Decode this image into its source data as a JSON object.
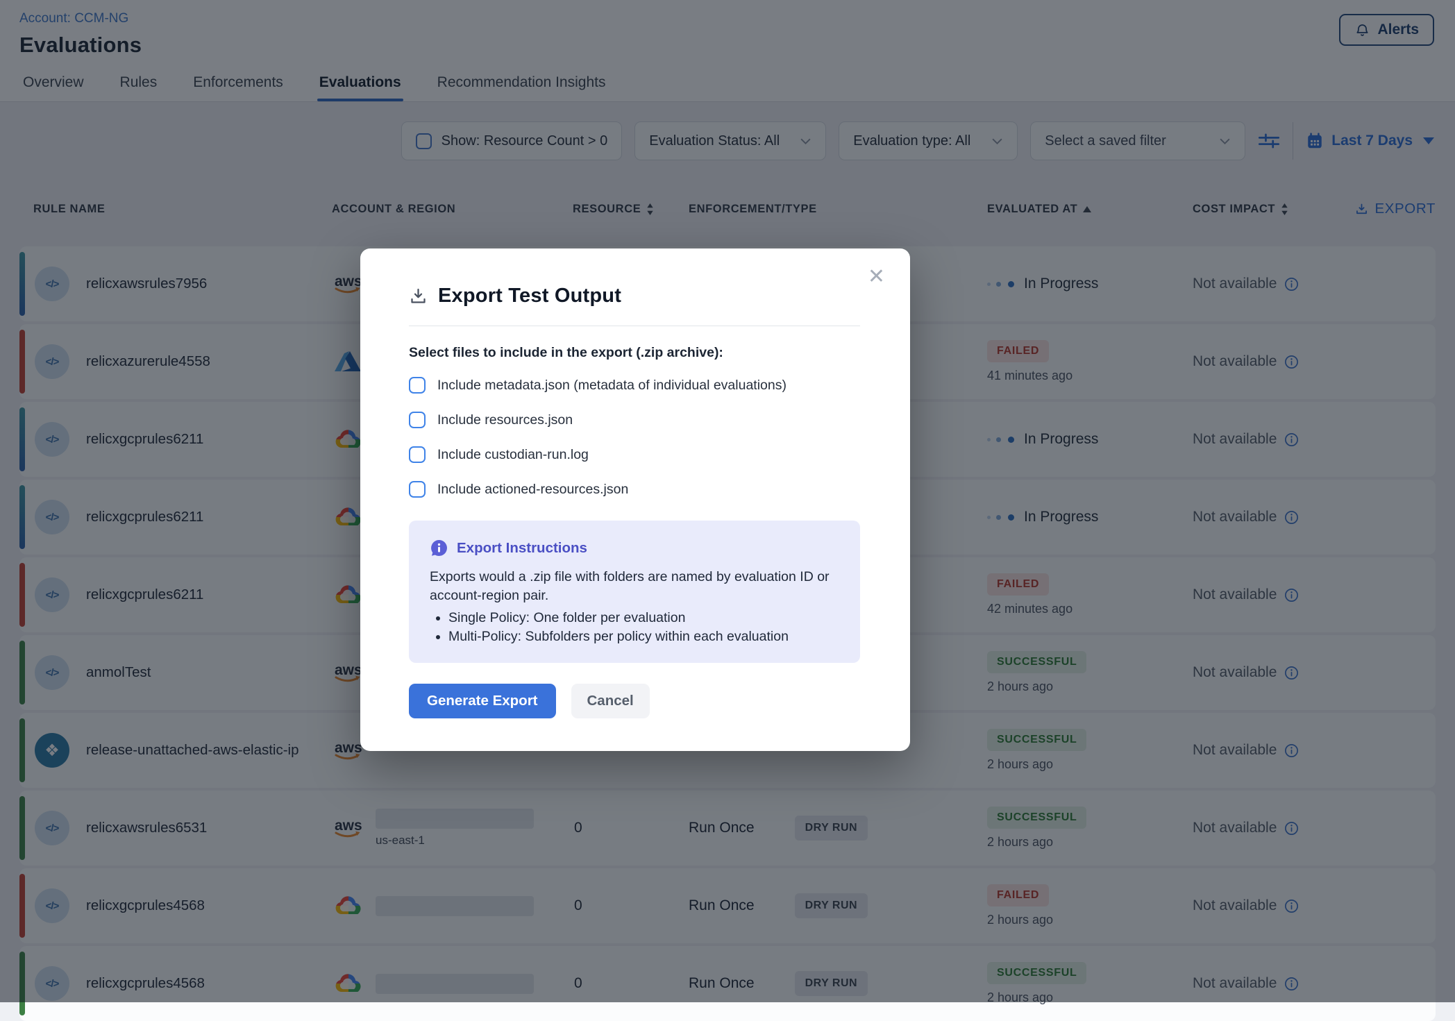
{
  "colors": {
    "accent_blue": "#2b6cd4",
    "link_blue": "#3f78c8",
    "failed_red": "#b3362a",
    "success_green": "#2c7a33",
    "inprogress_blue": "#2d6fc0",
    "instructions_purple": "#4a4fc4",
    "generate_button_blue": "#3a72da"
  },
  "header": {
    "account_label": "Account: CCM-NG",
    "title": "Evaluations",
    "alerts_label": "Alerts"
  },
  "tabs": [
    {
      "label": "Overview",
      "active": false
    },
    {
      "label": "Rules",
      "active": false
    },
    {
      "label": "Enforcements",
      "active": false
    },
    {
      "label": "Evaluations",
      "active": true
    },
    {
      "label": "Recommendation Insights",
      "active": false
    }
  ],
  "filters": {
    "show_label": "Show: Resource Count > 0",
    "status_dropdown": "Evaluation Status: All",
    "type_dropdown": "Evaluation type: All",
    "saved_filter_placeholder": "Select a saved filter",
    "date_range": "Last 7 Days"
  },
  "table": {
    "columns": [
      "RULE NAME",
      "ACCOUNT & REGION",
      "RESOURCE",
      "ENFORCEMENT/TYPE",
      "EVALUATED AT",
      "COST IMPACT"
    ],
    "export_label": "Export",
    "cost_not_available": "Not available",
    "rows": [
      {
        "name": "relicxawsrules7956",
        "provider": "aws",
        "icon": "policy",
        "status_kind": "inprogress",
        "status": "In Progress",
        "time": "",
        "resource": "",
        "enforcement": "",
        "run_type": "",
        "region": "",
        "account_redacted": false
      },
      {
        "name": "relicxazurerule4558",
        "provider": "azure",
        "icon": "policy",
        "status_kind": "failed",
        "status": "FAILED",
        "time": "41 minutes ago",
        "resource": "",
        "enforcement": "",
        "run_type": "",
        "region": "",
        "account_redacted": false
      },
      {
        "name": "relicxgcprules6211",
        "provider": "gcp",
        "icon": "policy",
        "status_kind": "inprogress",
        "status": "In Progress",
        "time": "",
        "resource": "",
        "enforcement": "",
        "run_type": "",
        "region": "",
        "account_redacted": false
      },
      {
        "name": "relicxgcprules6211",
        "provider": "gcp",
        "icon": "policy",
        "status_kind": "inprogress",
        "status": "In Progress",
        "time": "",
        "resource": "",
        "enforcement": "",
        "run_type": "",
        "region": "",
        "account_redacted": false
      },
      {
        "name": "relicxgcprules6211",
        "provider": "gcp",
        "icon": "policy",
        "status_kind": "failed",
        "status": "FAILED",
        "time": "42 minutes ago",
        "resource": "",
        "enforcement": "",
        "run_type": "",
        "region": "",
        "account_redacted": false
      },
      {
        "name": "anmolTest",
        "provider": "aws",
        "icon": "policy",
        "status_kind": "success",
        "status": "SUCCESSFUL",
        "time": "2 hours ago",
        "resource": "",
        "enforcement": "",
        "run_type": "",
        "region": "",
        "account_redacted": false
      },
      {
        "name": "release-unattached-aws-elastic-ip",
        "provider": "aws",
        "icon": "action",
        "status_kind": "success",
        "status": "SUCCESSFUL",
        "time": "2 hours ago",
        "resource": "",
        "enforcement": "",
        "run_type": "",
        "region": "",
        "account_redacted": false
      },
      {
        "name": "relicxawsrules6531",
        "provider": "aws",
        "icon": "policy",
        "status_kind": "success",
        "status": "SUCCESSFUL",
        "time": "2 hours ago",
        "resource": "0",
        "enforcement": "Run Once",
        "run_type": "DRY RUN",
        "region": "us-east-1",
        "account_redacted": true
      },
      {
        "name": "relicxgcprules4568",
        "provider": "gcp",
        "icon": "policy",
        "status_kind": "failed",
        "status": "FAILED",
        "time": "2 hours ago",
        "resource": "0",
        "enforcement": "Run Once",
        "run_type": "DRY RUN",
        "region": "",
        "account_redacted": true
      },
      {
        "name": "relicxgcprules4568",
        "provider": "gcp",
        "icon": "policy",
        "status_kind": "success",
        "status": "SUCCESSFUL",
        "time": "2 hours ago",
        "resource": "0",
        "enforcement": "Run Once",
        "run_type": "DRY RUN",
        "region": "",
        "account_redacted": true
      }
    ]
  },
  "modal": {
    "title": "Export Test Output",
    "close_glyph": "✕",
    "section_label": "Select files to include in the export (.zip archive):",
    "checkboxes": [
      "Include metadata.json (metadata of individual evaluations)",
      "Include resources.json",
      "Include custodian-run.log",
      "Include actioned-resources.json"
    ],
    "instructions_title": "Export Instructions",
    "instructions_body": "Exports would a .zip file with folders are named by evaluation ID or account-region pair.",
    "instructions_bullets": [
      "Single Policy: One folder per evaluation",
      "Multi-Policy: Subfolders per policy within each evaluation"
    ],
    "generate_label": "Generate Export",
    "cancel_label": "Cancel"
  }
}
